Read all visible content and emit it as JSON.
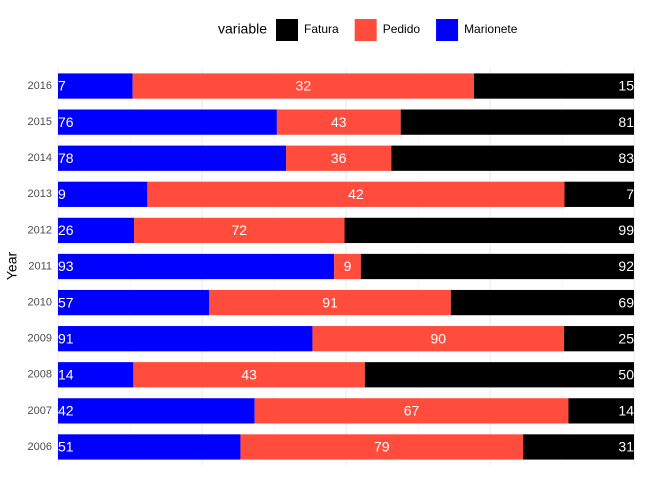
{
  "chart_data": {
    "type": "bar_fill_horizontal",
    "legend_title": "variable",
    "y_label": "Year",
    "categories": [
      "2006",
      "2007",
      "2008",
      "2009",
      "2010",
      "2011",
      "2012",
      "2013",
      "2014",
      "2015",
      "2016"
    ],
    "series": [
      {
        "name": "Fatura",
        "color": "#000000",
        "values": [
          31,
          14,
          50,
          25,
          69,
          92,
          99,
          7,
          83,
          81,
          15
        ]
      },
      {
        "name": "Pedido",
        "color": "#ff4c3c",
        "values": [
          79,
          67,
          43,
          90,
          91,
          9,
          72,
          42,
          36,
          43,
          32
        ]
      },
      {
        "name": "Marionete",
        "color": "#0000ff",
        "values": [
          51,
          42,
          14,
          91,
          57,
          93,
          26,
          9,
          78,
          76,
          7
        ]
      }
    ],
    "xlim": [
      0,
      1
    ],
    "xticks": [
      0,
      0.25,
      0.5,
      0.75,
      1
    ],
    "grid": true
  }
}
